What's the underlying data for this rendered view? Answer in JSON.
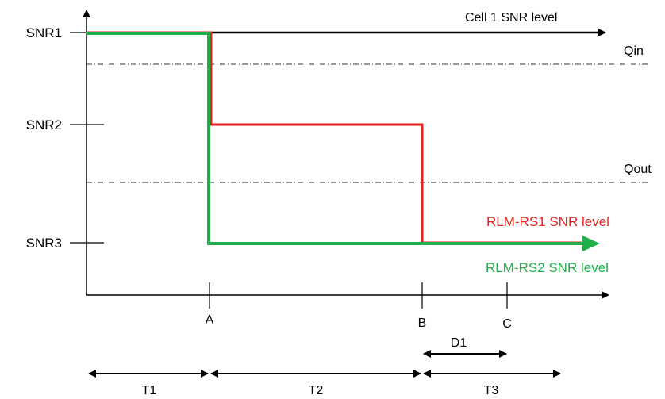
{
  "colors": {
    "cell1": "#000000",
    "rs1": "#e8231f",
    "rs2": "#1fb04a",
    "threshold": "#333333"
  },
  "y_axis": {
    "snr1": "SNR1",
    "snr2": "SNR2",
    "snr3": "SNR3"
  },
  "thresholds": {
    "qin": "Qin",
    "qout": "Qout"
  },
  "series": {
    "cell1": "Cell 1 SNR level",
    "rs1": "RLM-RS1 SNR level",
    "rs2": "RLM-RS2 SNR level"
  },
  "x_axis": {
    "a": "A",
    "b": "B",
    "c": "C"
  },
  "durations": {
    "d1": "D1",
    "t1": "T1",
    "t2": "T2",
    "t3": "T3"
  }
}
